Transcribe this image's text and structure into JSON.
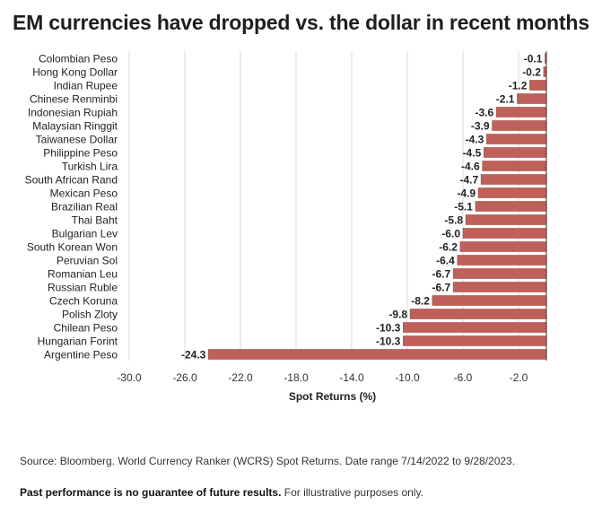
{
  "title": "EM currencies have dropped vs. the dollar in recent months",
  "footer": {
    "source": "Source: Bloomberg. World Currency Ranker (WCRS) Spot Returns. Date range 7/14/2022 to 9/28/2023.",
    "disclaimer_bold": "Past performance is no guarantee of future results.",
    "disclaimer_rest": " For illustrative purposes only."
  },
  "colors": {
    "bar": "#c0605a",
    "bar_edge": "#a84e49",
    "grid": "#d8d8d8",
    "axis": "#333333"
  },
  "chart_data": {
    "type": "bar",
    "orientation": "horizontal",
    "categories": [
      "Colombian Peso",
      "Hong Kong Dollar",
      "Indian Rupee",
      "Chinese Renminbi",
      "Indonesian Rupiah",
      "Malaysian Ringgit",
      "Taiwanese Dollar",
      "Philippine Peso",
      "Turkish Lira",
      "South African Rand",
      "Mexican Peso",
      "Brazilian Real",
      "Thai Baht",
      "Bulgarian Lev",
      "South Korean Won",
      "Peruvian Sol",
      "Romanian Leu",
      "Russian Ruble",
      "Czech Koruna",
      "Polish Zloty",
      "Chilean Peso",
      "Hungarian Forint",
      "Argentine Peso"
    ],
    "values": [
      -0.1,
      -0.2,
      -1.2,
      -2.1,
      -3.6,
      -3.9,
      -4.3,
      -4.5,
      -4.6,
      -4.7,
      -4.9,
      -5.1,
      -5.8,
      -6.0,
      -6.2,
      -6.4,
      -6.7,
      -6.7,
      -8.2,
      -9.8,
      -10.3,
      -10.3,
      -24.3
    ],
    "value_labels": [
      "-0.1",
      "-0.2",
      "-1.2",
      "-2.1",
      "-3.6",
      "-3.9",
      "-4.3",
      "-4.5",
      "-4.6",
      "-4.7",
      "-4.9",
      "-5.1",
      "-5.8",
      "-6.0",
      "-6.2",
      "-6.4",
      "-6.7",
      "-6.7",
      "-8.2",
      "-9.8",
      "-10.3",
      "-10.3",
      "-24.3"
    ],
    "xlabel": "Spot Returns (%)",
    "xlim": [
      -30.0,
      0.0
    ],
    "ticks": [
      -30.0,
      -26.0,
      -22.0,
      -18.0,
      -14.0,
      -10.0,
      -6.0,
      -2.0
    ],
    "tick_labels": [
      "-30.0",
      "-26.0",
      "-22.0",
      "-18.0",
      "-14.0",
      "-10.0",
      "-6.0",
      "-2.0"
    ],
    "grid": true
  }
}
